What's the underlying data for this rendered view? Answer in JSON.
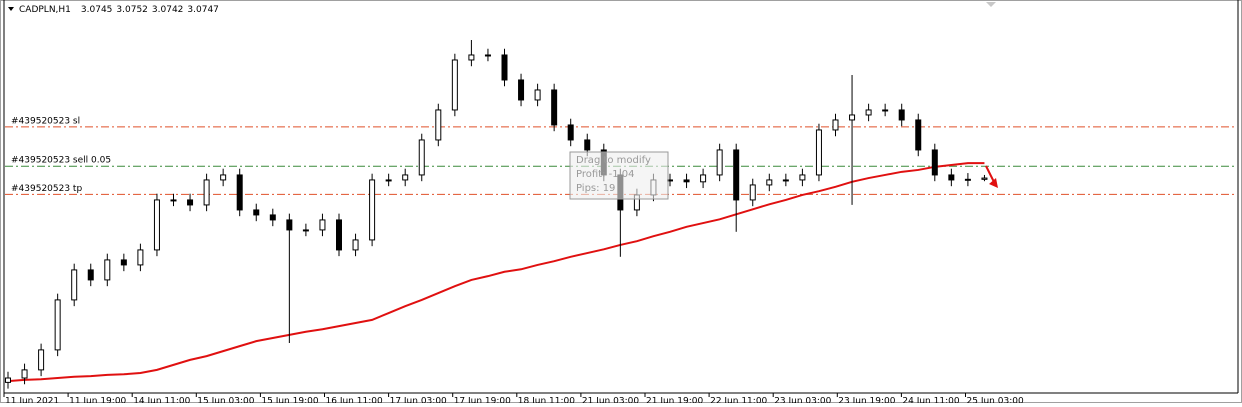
{
  "chart_data": {
    "type": "candlestick",
    "title": "CADPLN,H1",
    "x_labels": [
      "11 Jun 2021",
      "11 Jun 19:00",
      "14 Jun 11:00",
      "15 Jun 03:00",
      "15 Jun 19:00",
      "16 Jun 11:00",
      "17 Jun 03:00",
      "17 Jun 19:00",
      "18 Jun 11:00",
      "21 Jun 03:00",
      "21 Jun 19:00",
      "22 Jun 11:00",
      "23 Jun 03:00",
      "23 Jun 19:00",
      "24 Jun 11:00",
      "25 Jun 03:00"
    ],
    "open": [
      3.042,
      3.0427,
      3.044,
      3.0472,
      3.0552,
      3.06,
      3.0584,
      3.0616,
      3.0608,
      3.0632,
      3.0712,
      3.0712,
      3.0704,
      3.0744,
      3.0752,
      3.0696,
      3.0688,
      3.068,
      3.0664,
      3.0664,
      3.068,
      3.0632,
      3.0648,
      3.0744,
      3.0744,
      3.0752,
      3.0808,
      3.0856,
      3.0936,
      3.0944,
      3.0944,
      3.0904,
      3.0872,
      3.0888,
      3.0832,
      3.0808,
      3.0792,
      3.0752,
      3.0696,
      3.072,
      3.0744,
      3.0744,
      3.0741,
      3.0752,
      3.0792,
      3.0712,
      3.0736,
      3.0744,
      3.0744,
      3.0752,
      3.0824,
      3.084,
      3.0848,
      3.0856,
      3.0856,
      3.084,
      3.0792,
      3.0752,
      3.0744,
      3.0745
    ],
    "high": [
      3.0437,
      3.045,
      3.0482,
      3.0562,
      3.061,
      3.061,
      3.0626,
      3.0626,
      3.0642,
      3.0722,
      3.0722,
      3.0722,
      3.0754,
      3.0762,
      3.0762,
      3.0706,
      3.0698,
      3.069,
      3.0674,
      3.069,
      3.069,
      3.0658,
      3.0754,
      3.0754,
      3.0762,
      3.0818,
      3.0866,
      3.0946,
      3.0968,
      3.0954,
      3.0954,
      3.0914,
      3.0898,
      3.0898,
      3.0842,
      3.0818,
      3.0802,
      3.0762,
      3.073,
      3.0754,
      3.0754,
      3.0754,
      3.0762,
      3.0802,
      3.0802,
      3.0746,
      3.0754,
      3.0754,
      3.0762,
      3.0834,
      3.085,
      3.0912,
      3.0866,
      3.0866,
      3.0866,
      3.085,
      3.0802,
      3.0762,
      3.0755,
      3.0752
    ],
    "low": [
      3.041,
      3.0417,
      3.043,
      3.0462,
      3.0542,
      3.0574,
      3.0574,
      3.0598,
      3.0598,
      3.0622,
      3.0702,
      3.0694,
      3.0694,
      3.0734,
      3.0686,
      3.0678,
      3.067,
      3.0483,
      3.0654,
      3.0654,
      3.0622,
      3.0622,
      3.0638,
      3.0734,
      3.0734,
      3.0742,
      3.0798,
      3.0846,
      3.0926,
      3.0934,
      3.0894,
      3.0862,
      3.0862,
      3.0822,
      3.0798,
      3.0782,
      3.0742,
      3.0621,
      3.0686,
      3.071,
      3.0734,
      3.0731,
      3.0731,
      3.0742,
      3.0661,
      3.0702,
      3.0726,
      3.0734,
      3.0734,
      3.0742,
      3.0814,
      3.0704,
      3.0838,
      3.0846,
      3.083,
      3.0782,
      3.0742,
      3.0734,
      3.0734,
      3.0742
    ],
    "close": [
      3.0427,
      3.044,
      3.0472,
      3.0552,
      3.06,
      3.0584,
      3.0616,
      3.0608,
      3.0632,
      3.0712,
      3.0712,
      3.0704,
      3.0744,
      3.0752,
      3.0696,
      3.0688,
      3.068,
      3.0664,
      3.0664,
      3.068,
      3.0632,
      3.0648,
      3.0744,
      3.0744,
      3.0752,
      3.0808,
      3.0856,
      3.0936,
      3.0944,
      3.0944,
      3.0904,
      3.0872,
      3.0888,
      3.0832,
      3.0808,
      3.0792,
      3.0752,
      3.0696,
      3.072,
      3.0744,
      3.0744,
      3.0741,
      3.0752,
      3.0792,
      3.0712,
      3.0736,
      3.0744,
      3.0744,
      3.0752,
      3.0824,
      3.084,
      3.0848,
      3.0856,
      3.0856,
      3.084,
      3.0792,
      3.0752,
      3.0744,
      3.0745,
      3.0747
    ],
    "bull_color": "#ffffff",
    "bear_color": "#000000",
    "ma": {
      "color": "#e01010",
      "values": [
        3.0422,
        3.0424,
        3.0425,
        3.0427,
        3.0429,
        3.043,
        3.0432,
        3.0433,
        3.0435,
        3.044,
        3.0448,
        3.0456,
        3.0462,
        3.047,
        3.0478,
        3.0486,
        3.0491,
        3.0496,
        3.0501,
        3.0505,
        3.051,
        3.0515,
        3.052,
        3.0531,
        3.0542,
        3.0552,
        3.0563,
        3.0574,
        3.0584,
        3.059,
        3.0597,
        3.0601,
        3.0608,
        3.0614,
        3.0621,
        3.0627,
        3.0633,
        3.064,
        3.0646,
        3.0654,
        3.0661,
        3.0669,
        3.0675,
        3.0681,
        3.0689,
        3.0697,
        3.0705,
        3.0712,
        3.072,
        3.0726,
        3.0733,
        3.0741,
        3.0747,
        3.0752,
        3.0757,
        3.076,
        3.0765,
        3.0768,
        3.0771,
        3.0771
      ]
    },
    "levels": [
      {
        "label": "#439520523 sl",
        "value": 3.0829,
        "color": "#e0502a"
      },
      {
        "label": "#439520523 sell 0.05",
        "value": 3.0766,
        "color": "#3a8a3a"
      },
      {
        "label": "#439520523 tp",
        "value": 3.0721,
        "color": "#e0502a"
      }
    ],
    "tooltip": [
      "Drag to modify",
      "Profit: -1.04",
      "Pips: 19"
    ],
    "ylim": [
      3.0403,
      3.1032
    ]
  }
}
